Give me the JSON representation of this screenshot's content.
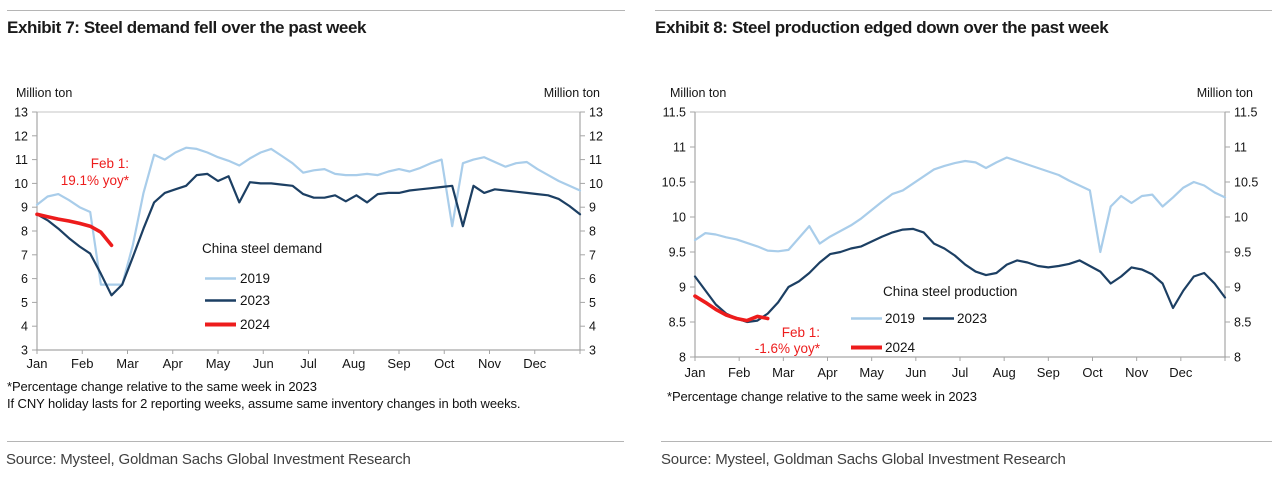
{
  "page": {
    "source_label": "Source: Mysteel, Goldman Sachs Global Investment Research"
  },
  "colors": {
    "light_blue": "#A9CDEA",
    "dark_blue": "#1C3F63",
    "red": "#ED1C1C",
    "axis": "#A6A6A6",
    "text": "#141414",
    "rule": "#B5B5B5"
  },
  "chart_data": [
    {
      "type": "line",
      "title": "Exhibit 7: Steel demand fell over the past week",
      "y_axis_label_left": "Million ton",
      "y_axis_label_right": "Million ton",
      "categories": [
        "Jan",
        "Feb",
        "Mar",
        "Apr",
        "May",
        "Jun",
        "Jul",
        "Aug",
        "Sep",
        "Oct",
        "Nov",
        "Dec"
      ],
      "x_unit": "weekly",
      "ylim": [
        3,
        13
      ],
      "y_step": 1,
      "grid": false,
      "legend": {
        "title": "China steel demand",
        "position": "inside-center"
      },
      "series": [
        {
          "name": "2019",
          "color": "#A9CDEA",
          "values": [
            9.1,
            9.45,
            9.55,
            9.3,
            9.0,
            8.8,
            5.75,
            5.75,
            5.75,
            7.4,
            9.6,
            11.2,
            11.0,
            11.3,
            11.5,
            11.45,
            11.3,
            11.1,
            10.95,
            10.75,
            11.05,
            11.3,
            11.45,
            11.15,
            10.85,
            10.45,
            10.55,
            10.6,
            10.4,
            10.35,
            10.35,
            10.4,
            10.35,
            10.5,
            10.6,
            10.5,
            10.65,
            10.85,
            11.0,
            8.2,
            10.85,
            11.0,
            11.1,
            10.9,
            10.7,
            10.85,
            10.9,
            10.6,
            10.35,
            10.1,
            9.9,
            9.7
          ]
        },
        {
          "name": "2023",
          "color": "#1C3F63",
          "values": [
            8.7,
            8.45,
            8.1,
            7.7,
            7.35,
            7.05,
            6.2,
            5.3,
            5.75,
            6.9,
            8.1,
            9.2,
            9.6,
            9.75,
            9.9,
            10.35,
            10.4,
            10.1,
            10.3,
            9.2,
            10.05,
            10.0,
            10.0,
            9.95,
            9.9,
            9.55,
            9.4,
            9.4,
            9.5,
            9.25,
            9.5,
            9.2,
            9.55,
            9.6,
            9.6,
            9.7,
            9.75,
            9.8,
            9.85,
            9.9,
            8.2,
            9.9,
            9.6,
            9.75,
            9.7,
            9.65,
            9.6,
            9.55,
            9.5,
            9.35,
            9.05,
            8.7
          ]
        },
        {
          "name": "2024",
          "color": "#ED1C1C",
          "values": [
            8.7,
            8.6,
            8.5,
            8.42,
            8.32,
            8.2,
            7.95,
            7.4
          ]
        }
      ],
      "annotation": {
        "lines": [
          "Feb 1:",
          "19.1% yoy*"
        ],
        "color": "#ED1C1C"
      },
      "footnotes": [
        "*Percentage change relative to the same week in 2023",
        "If CNY holiday lasts for 2 reporting weeks, assume same inventory changes in both weeks."
      ]
    },
    {
      "type": "line",
      "title": "Exhibit 8: Steel production edged down over the past week",
      "y_axis_label_left": "Million ton",
      "y_axis_label_right": "Million ton",
      "categories": [
        "Jan",
        "Feb",
        "Mar",
        "Apr",
        "May",
        "Jun",
        "Jul",
        "Aug",
        "Sep",
        "Oct",
        "Nov",
        "Dec"
      ],
      "x_unit": "weekly",
      "ylim": [
        8,
        11.5
      ],
      "y_step": 0.5,
      "grid": false,
      "legend": {
        "title": "China steel production",
        "position": "inside-bottom"
      },
      "series": [
        {
          "name": "2019",
          "color": "#A9CDEA",
          "values": [
            9.67,
            9.77,
            9.75,
            9.71,
            9.68,
            9.63,
            9.58,
            9.52,
            9.51,
            9.53,
            9.7,
            9.87,
            9.62,
            9.72,
            9.8,
            9.88,
            9.98,
            10.1,
            10.22,
            10.33,
            10.38,
            10.48,
            10.58,
            10.68,
            10.73,
            10.77,
            10.8,
            10.78,
            10.7,
            10.78,
            10.85,
            10.8,
            10.75,
            10.7,
            10.65,
            10.6,
            10.52,
            10.45,
            10.38,
            9.5,
            10.15,
            10.3,
            10.2,
            10.3,
            10.32,
            10.15,
            10.28,
            10.42,
            10.5,
            10.45,
            10.35,
            10.28
          ]
        },
        {
          "name": "2023",
          "color": "#1C3F63",
          "values": [
            9.15,
            8.95,
            8.75,
            8.62,
            8.55,
            8.5,
            8.52,
            8.62,
            8.78,
            9.0,
            9.08,
            9.2,
            9.35,
            9.47,
            9.5,
            9.55,
            9.58,
            9.65,
            9.72,
            9.78,
            9.82,
            9.83,
            9.78,
            9.62,
            9.55,
            9.45,
            9.32,
            9.22,
            9.17,
            9.2,
            9.32,
            9.38,
            9.35,
            9.3,
            9.28,
            9.3,
            9.33,
            9.38,
            9.3,
            9.22,
            9.05,
            9.15,
            9.28,
            9.25,
            9.18,
            9.05,
            8.7,
            8.95,
            9.15,
            9.2,
            9.05,
            8.85
          ]
        },
        {
          "name": "2024",
          "color": "#ED1C1C",
          "values": [
            8.87,
            8.78,
            8.68,
            8.6,
            8.55,
            8.52,
            8.58,
            8.55
          ]
        }
      ],
      "annotation": {
        "lines": [
          "Feb 1:",
          "-1.6% yoy*"
        ],
        "color": "#ED1C1C"
      },
      "footnotes": [
        "*Percentage change relative to the same week in 2023"
      ]
    }
  ]
}
